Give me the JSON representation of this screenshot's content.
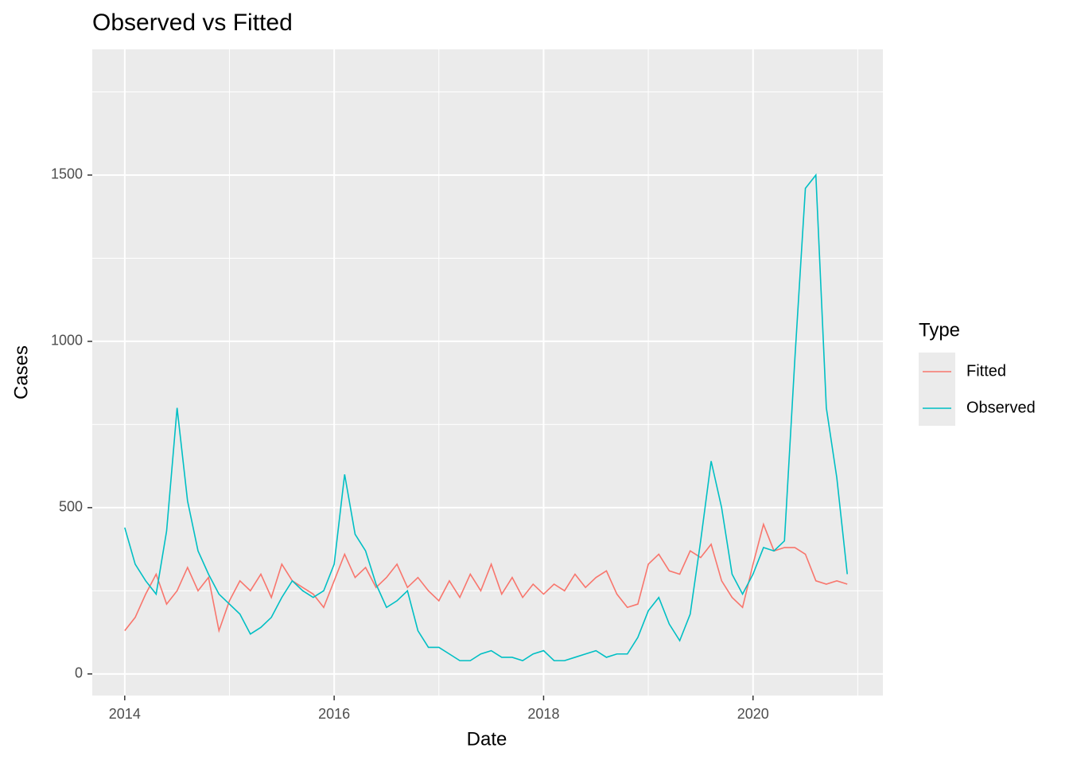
{
  "chart_data": {
    "type": "line",
    "title": "Observed vs Fitted",
    "x_label": "Date",
    "y_label": "Cases",
    "legend_title": "Type",
    "legend_position": "right",
    "grid": true,
    "minor_grid": true,
    "x": [
      2014,
      2014.1,
      2014.2,
      2014.3,
      2014.4,
      2014.5,
      2014.6,
      2014.7,
      2014.8,
      2014.9,
      2015,
      2015.1,
      2015.2,
      2015.3,
      2015.4,
      2015.5,
      2015.6,
      2015.7,
      2015.8,
      2015.9,
      2016,
      2016.1,
      2016.2,
      2016.3,
      2016.4,
      2016.5,
      2016.6,
      2016.7,
      2016.8,
      2016.9,
      2017,
      2017.1,
      2017.2,
      2017.3,
      2017.4,
      2017.5,
      2017.6,
      2017.7,
      2017.8,
      2017.9,
      2018,
      2018.1,
      2018.2,
      2018.3,
      2018.4,
      2018.5,
      2018.6,
      2018.7,
      2018.8,
      2018.9,
      2019,
      2019.1,
      2019.2,
      2019.3,
      2019.4,
      2019.5,
      2019.6,
      2019.7,
      2019.8,
      2019.9,
      2020,
      2020.1,
      2020.2,
      2020.3,
      2020.4,
      2020.5,
      2020.6,
      2020.7,
      2020.8,
      2020.9
    ],
    "series": [
      {
        "name": "Fitted",
        "color": "#F8766D",
        "values": [
          130,
          170,
          240,
          300,
          210,
          250,
          320,
          250,
          290,
          130,
          220,
          280,
          250,
          300,
          230,
          330,
          280,
          260,
          240,
          200,
          280,
          360,
          290,
          320,
          260,
          290,
          330,
          260,
          290,
          250,
          220,
          280,
          230,
          300,
          250,
          330,
          240,
          290,
          230,
          270,
          240,
          270,
          250,
          300,
          260,
          290,
          310,
          240,
          200,
          210,
          330,
          360,
          310,
          300,
          370,
          350,
          390,
          280,
          230,
          200,
          330,
          450,
          370,
          380,
          380,
          360,
          280,
          270,
          280,
          270
        ]
      },
      {
        "name": "Observed",
        "color": "#00BFC4",
        "values": [
          440,
          330,
          280,
          240,
          430,
          800,
          520,
          370,
          300,
          240,
          210,
          180,
          120,
          140,
          170,
          230,
          280,
          250,
          230,
          250,
          330,
          600,
          420,
          370,
          270,
          200,
          220,
          250,
          130,
          80,
          80,
          60,
          40,
          40,
          60,
          70,
          50,
          50,
          40,
          60,
          70,
          40,
          40,
          50,
          60,
          70,
          50,
          60,
          60,
          110,
          190,
          230,
          150,
          100,
          180,
          400,
          640,
          500,
          300,
          240,
          300,
          380,
          370,
          400,
          950,
          1460,
          1500,
          800,
          590,
          300
        ]
      }
    ],
    "xlim": [
      2013.69,
      2021.24
    ],
    "xticks": [
      2014,
      2016,
      2018,
      2020
    ],
    "ylim": [
      -65,
      1878
    ],
    "yticks": [
      0,
      500,
      1000,
      1500
    ]
  }
}
